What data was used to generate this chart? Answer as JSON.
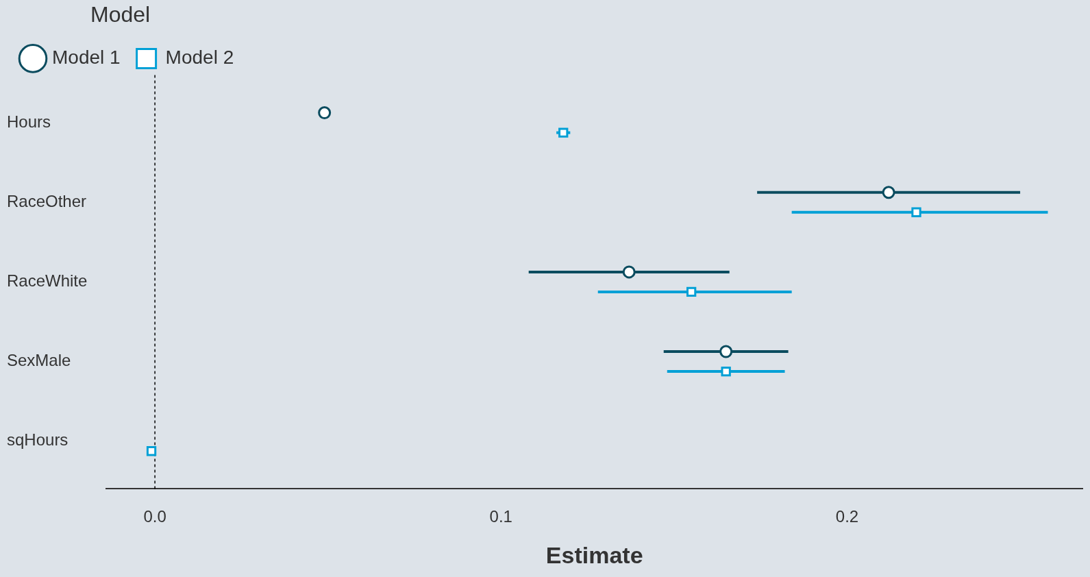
{
  "chart_data": {
    "type": "scatter",
    "orientation": "horizontal",
    "xlabel": "Estimate",
    "legend_title": "Model",
    "legend": "top left",
    "grid": false,
    "categories": [
      "Hours",
      "RaceOther",
      "RaceWhite",
      "SexMale",
      "sqHours"
    ],
    "series": [
      {
        "name": "Model 1",
        "color": "#0b4c5f",
        "marker": "circle",
        "values": [
          0.049,
          0.212,
          0.137,
          0.165,
          null
        ],
        "errors": [
          null,
          [
            0.174,
            0.25
          ],
          [
            0.108,
            0.166
          ],
          [
            0.147,
            0.183
          ],
          null
        ]
      },
      {
        "name": "Model 2",
        "color": "#00a0d6",
        "marker": "square",
        "values": [
          0.118,
          0.22,
          0.155,
          0.165,
          -0.001
        ],
        "errors": [
          [
            0.116,
            0.12
          ],
          [
            0.184,
            0.258
          ],
          [
            0.128,
            0.184
          ],
          [
            0.148,
            0.182
          ],
          null
        ]
      }
    ],
    "xlim": [
      -0.014,
      0.268
    ],
    "xticks": [
      {
        "value": 0,
        "label": "0.0"
      },
      0.1,
      0.2
    ],
    "ref_lines": [
      {
        "axis": "x",
        "value": 0,
        "line_style": "dashed",
        "color": "#000000"
      }
    ]
  }
}
